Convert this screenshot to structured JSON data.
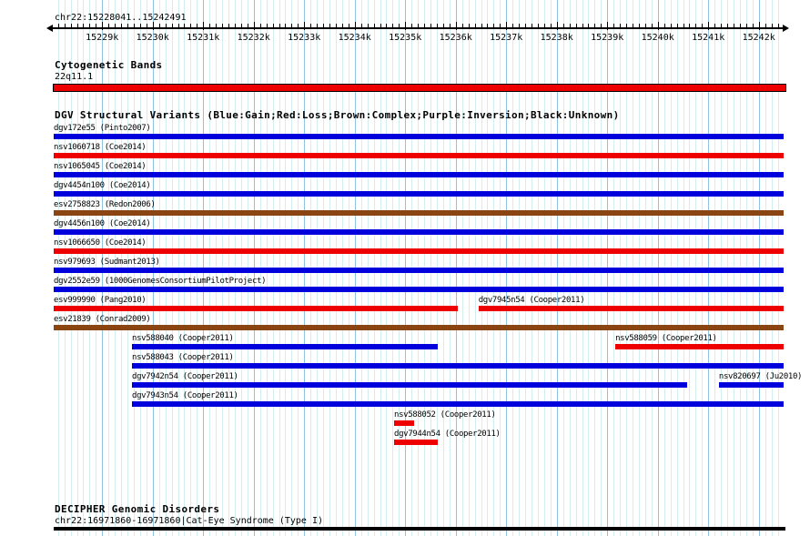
{
  "header": {
    "region_title": "chr22:15228041..15242491"
  },
  "ruler": {
    "ticks": [
      {
        "label": "15229k",
        "pos": 15229000
      },
      {
        "label": "15230k",
        "pos": 15230000
      },
      {
        "label": "15231k",
        "pos": 15231000
      },
      {
        "label": "15232k",
        "pos": 15232000
      },
      {
        "label": "15233k",
        "pos": 15233000
      },
      {
        "label": "15234k",
        "pos": 15234000
      },
      {
        "label": "15235k",
        "pos": 15235000
      },
      {
        "label": "15236k",
        "pos": 15236000
      },
      {
        "label": "15237k",
        "pos": 15237000
      },
      {
        "label": "15238k",
        "pos": 15238000
      },
      {
        "label": "15239k",
        "pos": 15239000
      },
      {
        "label": "15240k",
        "pos": 15240000
      },
      {
        "label": "15241k",
        "pos": 15241000
      },
      {
        "label": "15242k",
        "pos": 15242000
      }
    ]
  },
  "sections": {
    "cytogenetic": {
      "title": "Cytogenetic Bands",
      "band": {
        "label": "22q11.1",
        "color": "#ee0000",
        "start": 15228041,
        "end": 15242491
      }
    },
    "dgv": {
      "title": "DGV Structural Variants (Blue:Gain;Red:Loss;Brown:Complex;Purple:Inversion;Black:Unknown)"
    },
    "decipher": {
      "title": "DECIPHER Genomic Disorders",
      "entry": "chr22:16971860-16971860|Cat-Eye Syndrome (Type I)",
      "color": "#000000",
      "start": 15228041,
      "end": 15242491
    }
  },
  "colors_map": {
    "blue": "#0000dd",
    "red": "#ee0000",
    "brown": "#8b4513",
    "purple": "#800080",
    "black": "#000000",
    "grid_minor": "#d2eef0",
    "grid_major": "#8fc3e0"
  },
  "chart_data": {
    "type": "genome-tracks",
    "region": {
      "chrom": "chr22",
      "start": 15228041,
      "end": 15242491
    },
    "legend": {
      "Blue": "Gain",
      "Red": "Loss",
      "Brown": "Complex",
      "Purple": "Inversion",
      "Black": "Unknown"
    },
    "rows": [
      {
        "items": [
          {
            "label": "dgv172e55 (Pinto2007)",
            "color": "blue",
            "start": 15228041,
            "end": 15242491
          }
        ]
      },
      {
        "items": [
          {
            "label": "nsv1060718 (Coe2014)",
            "color": "red",
            "start": 15228041,
            "end": 15242491
          }
        ]
      },
      {
        "items": [
          {
            "label": "nsv1065045 (Coe2014)",
            "color": "blue",
            "start": 15228041,
            "end": 15242491
          }
        ]
      },
      {
        "items": [
          {
            "label": "dgv4454n100 (Coe2014)",
            "color": "blue",
            "start": 15228041,
            "end": 15242491
          }
        ]
      },
      {
        "items": [
          {
            "label": "esv2758823 (Redon2006)",
            "color": "brown",
            "start": 15228041,
            "end": 15242491
          }
        ]
      },
      {
        "items": [
          {
            "label": "dgv4456n100 (Coe2014)",
            "color": "blue",
            "start": 15228041,
            "end": 15242491
          }
        ]
      },
      {
        "items": [
          {
            "label": "nsv1066650 (Coe2014)",
            "color": "red",
            "start": 15228041,
            "end": 15242491
          }
        ]
      },
      {
        "items": [
          {
            "label": "nsv979693 (Sudmant2013)",
            "color": "blue",
            "start": 15228041,
            "end": 15242491
          }
        ]
      },
      {
        "items": [
          {
            "label": "dgv2552e59 (1000GenomesConsortiumPilotProject)",
            "color": "blue",
            "start": 15228041,
            "end": 15242491
          }
        ]
      },
      {
        "items": [
          {
            "label": "esv999990 (Pang2010)",
            "color": "red",
            "start": 15228041,
            "end": 15236040
          },
          {
            "label": "dgv7945n54 (Cooper2011)",
            "color": "red",
            "start": 15236450,
            "end": 15242491
          }
        ]
      },
      {
        "items": [
          {
            "label": "esv21839 (Conrad2009)",
            "color": "brown",
            "start": 15228041,
            "end": 15242491
          }
        ]
      },
      {
        "items": [
          {
            "label": "nsv588040 (Cooper2011)",
            "color": "blue",
            "start": 15229590,
            "end": 15235640
          },
          {
            "label": "nsv588059 (Cooper2011)",
            "color": "red",
            "start": 15239160,
            "end": 15242491
          }
        ]
      },
      {
        "items": [
          {
            "label": "nsv588043 (Cooper2011)",
            "color": "blue",
            "start": 15229590,
            "end": 15242491
          }
        ]
      },
      {
        "items": [
          {
            "label": "dgv7942n54 (Cooper2011)",
            "color": "blue",
            "start": 15229590,
            "end": 15240580
          },
          {
            "label": "nsv820697 (Ju2010)",
            "color": "blue",
            "start": 15241210,
            "end": 15242491
          }
        ]
      },
      {
        "items": [
          {
            "label": "dgv7943n54 (Cooper2011)",
            "color": "blue",
            "start": 15229590,
            "end": 15242491
          }
        ]
      },
      {
        "items": [
          {
            "label": "nsv588052 (Cooper2011)",
            "color": "red",
            "start": 15234780,
            "end": 15235170
          }
        ]
      },
      {
        "items": [
          {
            "label": "dgv7944n54 (Cooper2011)",
            "color": "red",
            "start": 15234780,
            "end": 15235640
          }
        ]
      }
    ]
  }
}
